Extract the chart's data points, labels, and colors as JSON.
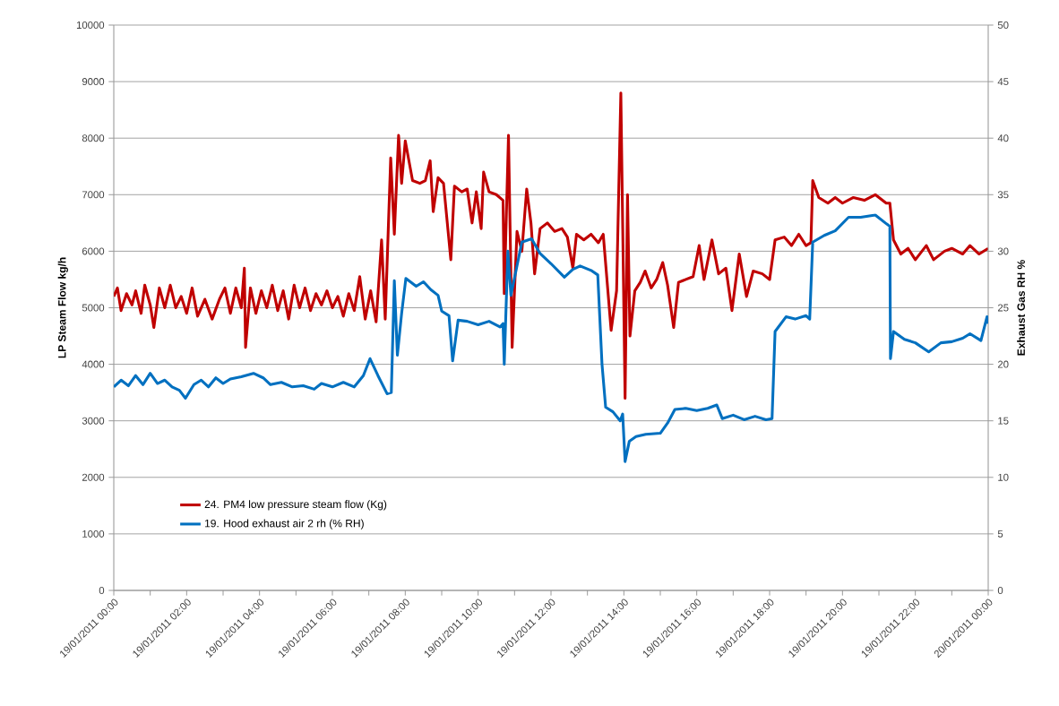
{
  "chart_data": {
    "type": "line",
    "ylabel": "LP Steam Flow kg/h",
    "y2label": "Exhaust Gas RH %",
    "xlim": [
      "2011-01-19T00:00",
      "2011-01-20T00:00"
    ],
    "xticks": [
      {
        "value": "2011-01-19T00:00",
        "label": "19/01/2011 00:00"
      },
      {
        "value": "2011-01-19T01:00",
        "label": null
      },
      {
        "value": "2011-01-19T02:00",
        "label": "19/01/2011 02:00"
      },
      {
        "value": "2011-01-19T03:00",
        "label": null
      },
      {
        "value": "2011-01-19T04:00",
        "label": "19/01/2011 04:00"
      },
      {
        "value": "2011-01-19T05:00",
        "label": null
      },
      {
        "value": "2011-01-19T06:00",
        "label": "19/01/2011 06:00"
      },
      {
        "value": "2011-01-19T07:00",
        "label": null
      },
      {
        "value": "2011-01-19T08:00",
        "label": "19/01/2011 08:00"
      },
      {
        "value": "2011-01-19T09:00",
        "label": null
      },
      {
        "value": "2011-01-19T10:00",
        "label": "19/01/2011 10:00"
      },
      {
        "value": "2011-01-19T11:00",
        "label": null
      },
      {
        "value": "2011-01-19T12:00",
        "label": "19/01/2011 12:00"
      },
      {
        "value": "2011-01-19T13:00",
        "label": null
      },
      {
        "value": "2011-01-19T14:00",
        "label": "19/01/2011 14:00"
      },
      {
        "value": "2011-01-19T15:00",
        "label": null
      },
      {
        "value": "2011-01-19T16:00",
        "label": "19/01/2011 16:00"
      },
      {
        "value": "2011-01-19T17:00",
        "label": null
      },
      {
        "value": "2011-01-19T18:00",
        "label": "19/01/2011 18:00"
      },
      {
        "value": "2011-01-19T19:00",
        "label": null
      },
      {
        "value": "2011-01-19T20:00",
        "label": "19/01/2011 20:00"
      },
      {
        "value": "2011-01-19T21:00",
        "label": null
      },
      {
        "value": "2011-01-19T22:00",
        "label": "19/01/2011 22:00"
      },
      {
        "value": "2011-01-19T23:00",
        "label": null
      },
      {
        "value": "2011-01-20T00:00",
        "label": "20/01/2011 00:00"
      }
    ],
    "ylim": [
      0,
      10000
    ],
    "yticks": [
      0,
      1000,
      2000,
      3000,
      4000,
      5000,
      6000,
      7000,
      8000,
      9000,
      10000
    ],
    "y2lim": [
      0,
      50
    ],
    "y2ticks": [
      0,
      5,
      10,
      15,
      20,
      25,
      30,
      35,
      40,
      45,
      50
    ],
    "grid": "y",
    "legend": "bottom left",
    "series": [
      {
        "name": "24. PM4 low pressure steam flow (Kg)",
        "color": "#c00000",
        "axis": "y",
        "x": [
          "2011-01-19T00:00",
          "2011-01-19T00:06",
          "2011-01-19T00:12",
          "2011-01-19T00:21",
          "2011-01-19T00:30",
          "2011-01-19T00:36",
          "2011-01-19T00:45",
          "2011-01-19T00:51",
          "2011-01-19T01:00",
          "2011-01-19T01:06",
          "2011-01-19T01:15",
          "2011-01-19T01:24",
          "2011-01-19T01:33",
          "2011-01-19T01:42",
          "2011-01-19T01:51",
          "2011-01-19T02:00",
          "2011-01-19T02:09",
          "2011-01-19T02:18",
          "2011-01-19T02:30",
          "2011-01-19T02:42",
          "2011-01-19T02:54",
          "2011-01-19T03:03",
          "2011-01-19T03:12",
          "2011-01-19T03:21",
          "2011-01-19T03:30",
          "2011-01-19T03:35",
          "2011-01-19T03:37",
          "2011-01-19T03:45",
          "2011-01-19T03:54",
          "2011-01-19T04:03",
          "2011-01-19T04:12",
          "2011-01-19T04:21",
          "2011-01-19T04:30",
          "2011-01-19T04:39",
          "2011-01-19T04:48",
          "2011-01-19T04:57",
          "2011-01-19T05:06",
          "2011-01-19T05:15",
          "2011-01-19T05:24",
          "2011-01-19T05:33",
          "2011-01-19T05:42",
          "2011-01-19T05:51",
          "2011-01-19T06:00",
          "2011-01-19T06:09",
          "2011-01-19T06:18",
          "2011-01-19T06:27",
          "2011-01-19T06:36",
          "2011-01-19T06:45",
          "2011-01-19T06:54",
          "2011-01-19T07:03",
          "2011-01-19T07:12",
          "2011-01-19T07:21",
          "2011-01-19T07:27",
          "2011-01-19T07:36",
          "2011-01-19T07:42",
          "2011-01-19T07:49",
          "2011-01-19T07:54",
          "2011-01-19T08:00",
          "2011-01-19T08:12",
          "2011-01-19T08:24",
          "2011-01-19T08:33",
          "2011-01-19T08:41",
          "2011-01-19T08:46",
          "2011-01-19T08:54",
          "2011-01-19T09:03",
          "2011-01-19T09:15",
          "2011-01-19T09:21",
          "2011-01-19T09:33",
          "2011-01-19T09:42",
          "2011-01-19T09:50",
          "2011-01-19T09:57",
          "2011-01-19T10:05",
          "2011-01-19T10:09",
          "2011-01-19T10:18",
          "2011-01-19T10:30",
          "2011-01-19T10:41",
          "2011-01-19T10:43",
          "2011-01-19T10:50",
          "2011-01-19T10:56",
          "2011-01-19T11:04",
          "2011-01-19T11:12",
          "2011-01-19T11:20",
          "2011-01-19T11:27",
          "2011-01-19T11:33",
          "2011-01-19T11:42",
          "2011-01-19T11:54",
          "2011-01-19T12:06",
          "2011-01-19T12:18",
          "2011-01-19T12:27",
          "2011-01-19T12:36",
          "2011-01-19T12:42",
          "2011-01-19T12:54",
          "2011-01-19T13:06",
          "2011-01-19T13:18",
          "2011-01-19T13:26",
          "2011-01-19T13:39",
          "2011-01-19T13:48",
          "2011-01-19T13:55",
          "2011-01-19T14:02",
          "2011-01-19T14:06",
          "2011-01-19T14:10",
          "2011-01-19T14:18",
          "2011-01-19T14:27",
          "2011-01-19T14:35",
          "2011-01-19T14:45",
          "2011-01-19T14:54",
          "2011-01-19T15:04",
          "2011-01-19T15:12",
          "2011-01-19T15:22",
          "2011-01-19T15:30",
          "2011-01-19T15:42",
          "2011-01-19T15:54",
          "2011-01-19T16:04",
          "2011-01-19T16:12",
          "2011-01-19T16:25",
          "2011-01-19T16:36",
          "2011-01-19T16:48",
          "2011-01-19T16:58",
          "2011-01-19T17:10",
          "2011-01-19T17:22",
          "2011-01-19T17:33",
          "2011-01-19T17:48",
          "2011-01-19T18:00",
          "2011-01-19T18:09",
          "2011-01-19T18:24",
          "2011-01-19T18:36",
          "2011-01-19T18:48",
          "2011-01-19T19:00",
          "2011-01-19T19:08",
          "2011-01-19T19:11",
          "2011-01-19T19:21",
          "2011-01-19T19:36",
          "2011-01-19T19:48",
          "2011-01-19T20:00",
          "2011-01-19T20:18",
          "2011-01-19T20:36",
          "2011-01-19T20:54",
          "2011-01-19T21:12",
          "2011-01-19T21:18",
          "2011-01-19T21:24",
          "2011-01-19T21:36",
          "2011-01-19T21:48",
          "2011-01-19T22:00",
          "2011-01-19T22:18",
          "2011-01-19T22:30",
          "2011-01-19T22:48",
          "2011-01-19T23:00",
          "2011-01-19T23:18",
          "2011-01-19T23:30",
          "2011-01-19T23:45",
          "2011-01-20T00:00"
        ],
        "values": [
          5200,
          5350,
          4950,
          5250,
          5050,
          5300,
          4900,
          5400,
          5050,
          4650,
          5350,
          5000,
          5400,
          5000,
          5200,
          4900,
          5350,
          4850,
          5150,
          4800,
          5150,
          5350,
          4900,
          5350,
          5000,
          5700,
          4300,
          5350,
          4900,
          5300,
          5000,
          5400,
          4950,
          5300,
          4800,
          5400,
          5000,
          5350,
          4950,
          5250,
          5050,
          5300,
          5000,
          5200,
          4850,
          5250,
          4950,
          5550,
          4800,
          5300,
          4750,
          6200,
          4800,
          7650,
          6300,
          8050,
          7200,
          7950,
          7250,
          7200,
          7250,
          7600,
          6700,
          7300,
          7200,
          5850,
          7150,
          7050,
          7100,
          6500,
          7050,
          6400,
          7400,
          7050,
          7000,
          6900,
          5250,
          8050,
          4300,
          6350,
          6000,
          7100,
          6500,
          5600,
          6400,
          6500,
          6350,
          6400,
          6250,
          5700,
          6300,
          6200,
          6300,
          6150,
          6300,
          4600,
          5300,
          8800,
          3400,
          7000,
          4500,
          5300,
          5450,
          5650,
          5350,
          5500,
          5800,
          5400,
          4650,
          5450,
          5500,
          5550,
          6100,
          5500,
          6200,
          5600,
          5700,
          4950,
          5950,
          5200,
          5650,
          5600,
          5500,
          6200,
          6250,
          6100,
          6300,
          6100,
          6150,
          7250,
          6950,
          6850,
          6950,
          6850,
          6950,
          6900,
          7000,
          6850,
          6850,
          6200,
          5950,
          6050,
          5850,
          6100,
          5850,
          6000,
          6050,
          5950,
          6100,
          5950,
          6050
        ]
      },
      {
        "name": "19. Hood exhaust air 2 rh (% RH)",
        "color": "#0070c0",
        "axis": "y2",
        "x": [
          "2011-01-19T00:00",
          "2011-01-19T00:12",
          "2011-01-19T00:24",
          "2011-01-19T00:36",
          "2011-01-19T00:48",
          "2011-01-19T01:00",
          "2011-01-19T01:12",
          "2011-01-19T01:24",
          "2011-01-19T01:36",
          "2011-01-19T01:48",
          "2011-01-19T01:58",
          "2011-01-19T02:12",
          "2011-01-19T02:24",
          "2011-01-19T02:36",
          "2011-01-19T02:48",
          "2011-01-19T03:00",
          "2011-01-19T03:12",
          "2011-01-19T03:30",
          "2011-01-19T03:50",
          "2011-01-19T04:06",
          "2011-01-19T04:18",
          "2011-01-19T04:36",
          "2011-01-19T04:54",
          "2011-01-19T05:12",
          "2011-01-19T05:30",
          "2011-01-19T05:42",
          "2011-01-19T06:00",
          "2011-01-19T06:18",
          "2011-01-19T06:36",
          "2011-01-19T06:51",
          "2011-01-19T07:02",
          "2011-01-19T07:15",
          "2011-01-19T07:30",
          "2011-01-19T07:37",
          "2011-01-19T07:42",
          "2011-01-19T07:47",
          "2011-01-19T07:54",
          "2011-01-19T08:01",
          "2011-01-19T08:18",
          "2011-01-19T08:30",
          "2011-01-19T08:42",
          "2011-01-19T08:54",
          "2011-01-19T09:00",
          "2011-01-19T09:12",
          "2011-01-19T09:18",
          "2011-01-19T09:27",
          "2011-01-19T09:42",
          "2011-01-19T10:00",
          "2011-01-19T10:18",
          "2011-01-19T10:36",
          "2011-01-19T10:41",
          "2011-01-19T10:43",
          "2011-01-19T10:49",
          "2011-01-19T10:54",
          "2011-01-19T11:12",
          "2011-01-19T11:28",
          "2011-01-19T11:42",
          "2011-01-19T12:00",
          "2011-01-19T12:22",
          "2011-01-19T12:36",
          "2011-01-19T12:48",
          "2011-01-19T13:06",
          "2011-01-19T13:17",
          "2011-01-19T13:24",
          "2011-01-19T13:30",
          "2011-01-19T13:42",
          "2011-01-19T13:54",
          "2011-01-19T13:58",
          "2011-01-19T14:02",
          "2011-01-19T14:09",
          "2011-01-19T14:20",
          "2011-01-19T14:36",
          "2011-01-19T15:00",
          "2011-01-19T15:12",
          "2011-01-19T15:24",
          "2011-01-19T15:42",
          "2011-01-19T16:00",
          "2011-01-19T16:18",
          "2011-01-19T16:33",
          "2011-01-19T16:42",
          "2011-01-19T17:00",
          "2011-01-19T17:18",
          "2011-01-19T17:36",
          "2011-01-19T17:54",
          "2011-01-19T18:04",
          "2011-01-19T18:09",
          "2011-01-19T18:27",
          "2011-01-19T18:42",
          "2011-01-19T19:00",
          "2011-01-19T19:06",
          "2011-01-19T19:11",
          "2011-01-19T19:30",
          "2011-01-19T19:48",
          "2011-01-19T20:10",
          "2011-01-19T20:30",
          "2011-01-19T20:54",
          "2011-01-19T21:13",
          "2011-01-19T21:18",
          "2011-01-19T21:19",
          "2011-01-19T21:24",
          "2011-01-19T21:42",
          "2011-01-19T22:00",
          "2011-01-19T22:22",
          "2011-01-19T22:42",
          "2011-01-19T23:00",
          "2011-01-19T23:18",
          "2011-01-19T23:30",
          "2011-01-19T23:48",
          "2011-01-19T23:58",
          "2011-01-20T00:00"
        ],
        "values": [
          18.0,
          18.6,
          18.1,
          19.0,
          18.2,
          19.2,
          18.3,
          18.6,
          18.0,
          17.7,
          17.0,
          18.2,
          18.6,
          18.0,
          18.8,
          18.3,
          18.7,
          18.9,
          19.2,
          18.8,
          18.2,
          18.4,
          18.0,
          18.1,
          17.8,
          18.3,
          18.0,
          18.4,
          18.0,
          19.0,
          20.5,
          19.0,
          17.4,
          17.5,
          27.4,
          20.8,
          24.5,
          27.6,
          26.9,
          27.3,
          26.6,
          26.1,
          24.7,
          24.3,
          20.3,
          23.9,
          23.8,
          23.5,
          23.8,
          23.3,
          23.6,
          20.0,
          30.0,
          26.1,
          30.8,
          31.1,
          29.8,
          28.9,
          27.7,
          28.4,
          28.7,
          28.3,
          27.9,
          20.0,
          16.2,
          15.8,
          15.0,
          15.6,
          11.4,
          13.2,
          13.6,
          13.8,
          13.9,
          14.8,
          16.0,
          16.1,
          15.9,
          16.1,
          16.4,
          15.2,
          15.5,
          15.1,
          15.4,
          15.1,
          15.2,
          22.9,
          24.2,
          24.0,
          24.3,
          24.0,
          30.8,
          31.4,
          31.8,
          33.0,
          33.0,
          33.2,
          32.4,
          32.2,
          20.5,
          22.9,
          22.2,
          21.9,
          21.1,
          21.9,
          22.0,
          22.3,
          22.7,
          22.1,
          24.2,
          23.6
        ]
      }
    ]
  }
}
